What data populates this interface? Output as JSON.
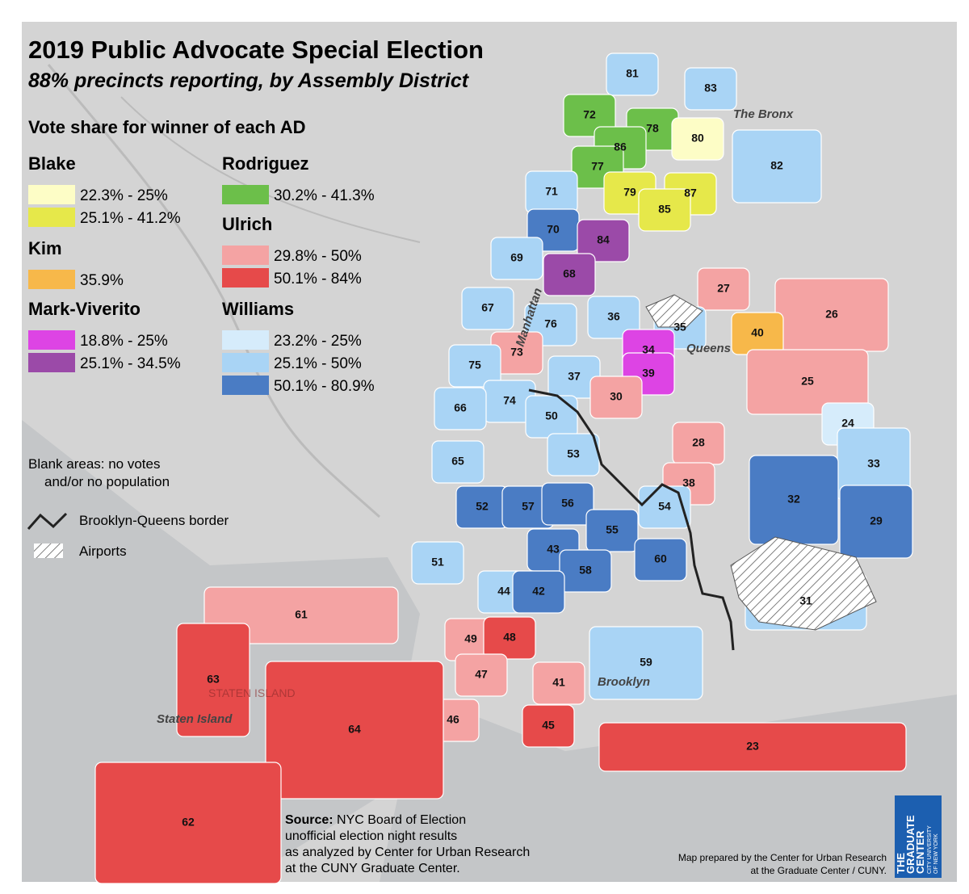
{
  "title": "2019 Public Advocate Special Election",
  "subtitle": "88% precincts reporting, by Assembly District",
  "legend": {
    "heading": "Vote share for winner of each AD",
    "groups": [
      {
        "name": "Blake",
        "items": [
          {
            "label": "22.3% - 25%",
            "color": "#fdfdc6"
          },
          {
            "label": "25.1% - 41.2%",
            "color": "#e6e84a"
          }
        ]
      },
      {
        "name": "Kim",
        "items": [
          {
            "label": "35.9%",
            "color": "#f7b84a"
          }
        ]
      },
      {
        "name": "Mark-Viverito",
        "items": [
          {
            "label": "18.8% - 25%",
            "color": "#dd44e4"
          },
          {
            "label": "25.1% - 34.5%",
            "color": "#9b4aa8"
          }
        ]
      },
      {
        "name": "Rodriguez",
        "items": [
          {
            "label": "30.2% - 41.3%",
            "color": "#6cbf4a"
          }
        ]
      },
      {
        "name": "Ulrich",
        "items": [
          {
            "label": "29.8% - 50%",
            "color": "#f4a3a3"
          },
          {
            "label": "50.1% - 84%",
            "color": "#e64a4a"
          }
        ]
      },
      {
        "name": "Williams",
        "items": [
          {
            "label": "23.2% - 25%",
            "color": "#d6ecfb"
          },
          {
            "label": "25.1% - 50%",
            "color": "#a9d4f5"
          },
          {
            "label": "50.1% - 80.9%",
            "color": "#4a7cc4"
          }
        ]
      }
    ],
    "blank_note": [
      "Blank areas: no votes",
      "and/or no population"
    ],
    "border": "Brooklyn-Queens border",
    "airports": "Airports"
  },
  "boroughs": [
    "The Bronx",
    "Manhattan",
    "Queens",
    "Brooklyn",
    "Staten Island",
    "STATEN ISLAND"
  ],
  "districts": [
    {
      "label": "81",
      "color": "#a9d4f5"
    },
    {
      "label": "83",
      "color": "#a9d4f5"
    },
    {
      "label": "72",
      "color": "#6cbf4a"
    },
    {
      "label": "78",
      "color": "#6cbf4a"
    },
    {
      "label": "86",
      "color": "#6cbf4a"
    },
    {
      "label": "80",
      "color": "#fdfdc6"
    },
    {
      "label": "82",
      "color": "#a9d4f5"
    },
    {
      "label": "77",
      "color": "#6cbf4a"
    },
    {
      "label": "71",
      "color": "#a9d4f5"
    },
    {
      "label": "79",
      "color": "#e6e84a"
    },
    {
      "label": "87",
      "color": "#e6e84a"
    },
    {
      "label": "85",
      "color": "#e6e84a"
    },
    {
      "label": "70",
      "color": "#4a7cc4"
    },
    {
      "label": "84",
      "color": "#9b4aa8"
    },
    {
      "label": "69",
      "color": "#a9d4f5"
    },
    {
      "label": "68",
      "color": "#9b4aa8"
    },
    {
      "label": "27",
      "color": "#f4a3a3"
    },
    {
      "label": "67",
      "color": "#a9d4f5"
    },
    {
      "label": "36",
      "color": "#a9d4f5"
    },
    {
      "label": "35",
      "color": "#a9d4f5"
    },
    {
      "label": "26",
      "color": "#f4a3a3"
    },
    {
      "label": "76",
      "color": "#a9d4f5"
    },
    {
      "label": "40",
      "color": "#f7b84a"
    },
    {
      "label": "73",
      "color": "#f4a3a3"
    },
    {
      "label": "34",
      "color": "#dd44e4"
    },
    {
      "label": "39",
      "color": "#dd44e4"
    },
    {
      "label": "75",
      "color": "#a9d4f5"
    },
    {
      "label": "37",
      "color": "#a9d4f5"
    },
    {
      "label": "25",
      "color": "#f4a3a3"
    },
    {
      "label": "30",
      "color": "#f4a3a3"
    },
    {
      "label": "74",
      "color": "#a9d4f5"
    },
    {
      "label": "66",
      "color": "#a9d4f5"
    },
    {
      "label": "50",
      "color": "#a9d4f5"
    },
    {
      "label": "24",
      "color": "#d6ecfb"
    },
    {
      "label": "28",
      "color": "#f4a3a3"
    },
    {
      "label": "53",
      "color": "#a9d4f5"
    },
    {
      "label": "65",
      "color": "#a9d4f5"
    },
    {
      "label": "33",
      "color": "#a9d4f5"
    },
    {
      "label": "38",
      "color": "#f4a3a3"
    },
    {
      "label": "52",
      "color": "#4a7cc4"
    },
    {
      "label": "57",
      "color": "#4a7cc4"
    },
    {
      "label": "56",
      "color": "#4a7cc4"
    },
    {
      "label": "32",
      "color": "#4a7cc4"
    },
    {
      "label": "54",
      "color": "#a9d4f5"
    },
    {
      "label": "29",
      "color": "#4a7cc4"
    },
    {
      "label": "55",
      "color": "#4a7cc4"
    },
    {
      "label": "43",
      "color": "#4a7cc4"
    },
    {
      "label": "60",
      "color": "#4a7cc4"
    },
    {
      "label": "51",
      "color": "#a9d4f5"
    },
    {
      "label": "58",
      "color": "#4a7cc4"
    },
    {
      "label": "44",
      "color": "#a9d4f5"
    },
    {
      "label": "42",
      "color": "#4a7cc4"
    },
    {
      "label": "31",
      "color": "#a9d4f5"
    },
    {
      "label": "61",
      "color": "#f4a3a3"
    },
    {
      "label": "49",
      "color": "#f4a3a3"
    },
    {
      "label": "48",
      "color": "#e64a4a"
    },
    {
      "label": "59",
      "color": "#a9d4f5"
    },
    {
      "label": "47",
      "color": "#f4a3a3"
    },
    {
      "label": "41",
      "color": "#f4a3a3"
    },
    {
      "label": "63",
      "color": "#e64a4a"
    },
    {
      "label": "46",
      "color": "#f4a3a3"
    },
    {
      "label": "45",
      "color": "#e64a4a"
    },
    {
      "label": "64",
      "color": "#e64a4a"
    },
    {
      "label": "23",
      "color": "#e64a4a"
    },
    {
      "label": "62",
      "color": "#e64a4a"
    }
  ],
  "source": {
    "label": "Source:",
    "lines": [
      " NYC Board of Election",
      "unofficial election night results",
      "as analyzed by Center for Urban Research",
      "at the CUNY Graduate Center."
    ]
  },
  "credit": [
    "Map prepared by the Center for Urban Research",
    "at the Graduate Center / CUNY."
  ],
  "logo": {
    "lines": [
      "THE",
      "GRADUATE",
      "CENTER"
    ],
    "sub": [
      "CITY UNIVERSITY",
      "OF NEW YORK"
    ]
  }
}
